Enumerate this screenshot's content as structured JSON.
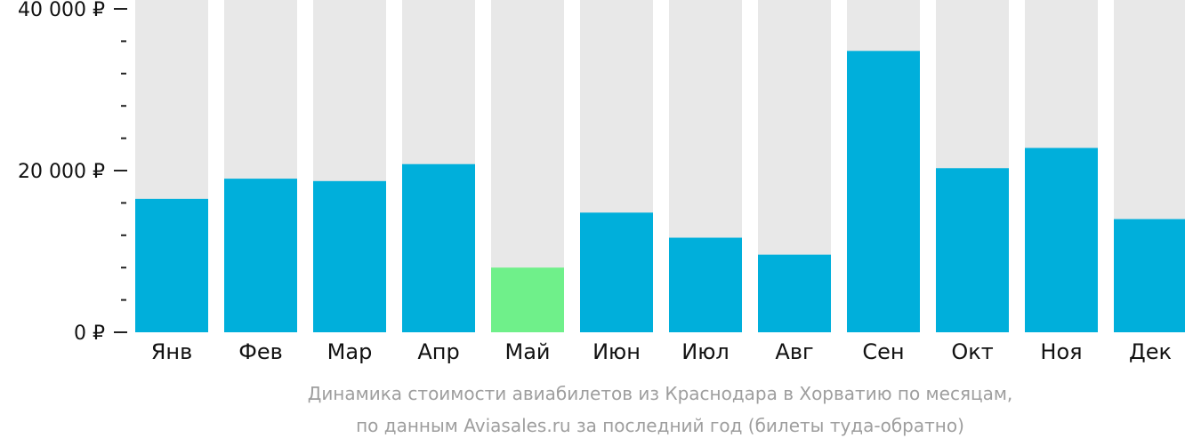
{
  "chart_data": {
    "type": "bar",
    "categories": [
      "Янв",
      "Фев",
      "Мар",
      "Апр",
      "Май",
      "Июн",
      "Июл",
      "Авг",
      "Сен",
      "Окт",
      "Ноя",
      "Дек"
    ],
    "values": [
      16500,
      19000,
      18700,
      20800,
      8000,
      14800,
      11700,
      9600,
      34800,
      20300,
      22800,
      14000
    ],
    "ylim": [
      0,
      40000
    ],
    "yticks": [
      {
        "value": 40000,
        "label": "40 000 ₽"
      },
      {
        "value": 20000,
        "label": "20 000 ₽"
      },
      {
        "value": 0,
        "label": "0 ₽"
      }
    ],
    "minor_tick_step": 4000,
    "highlight_index": 4,
    "colors": {
      "bar": "#00afdb",
      "highlight": "#6ff08a",
      "track": "#e8e8e8",
      "axis_text": "#111111",
      "tick": "#222222"
    },
    "grid": false
  },
  "caption": {
    "line1": "Динамика стоимости авиабилетов из Краснодара в Хорватию по месяцам,",
    "line2": "по данным Aviasales.ru за последний год (билеты туда-обратно)"
  }
}
